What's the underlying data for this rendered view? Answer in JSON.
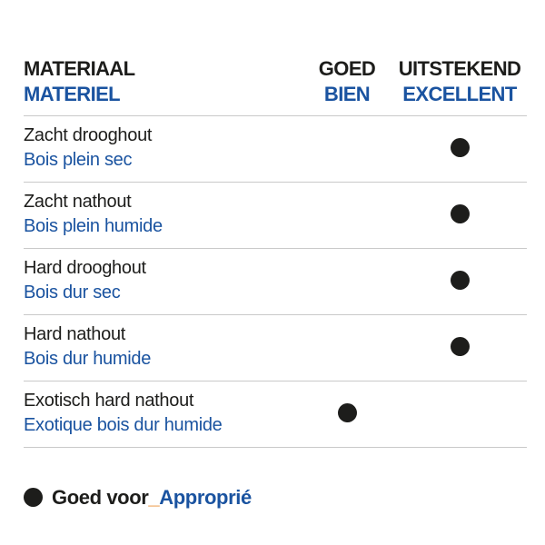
{
  "table": {
    "header": {
      "material_nl": "MATERIAAL",
      "material_fr": "MATERIEL",
      "good_nl": "GOED",
      "good_fr": "BIEN",
      "excellent_nl": "UITSTEKEND",
      "excellent_fr": "EXCELLENT"
    },
    "rows": [
      {
        "nl": "Zacht drooghout",
        "fr": "Bois plein sec",
        "rating": "excellent"
      },
      {
        "nl": "Zacht nathout",
        "fr": "Bois plein humide",
        "rating": "excellent"
      },
      {
        "nl": "Hard drooghout",
        "fr": "Bois dur sec",
        "rating": "excellent"
      },
      {
        "nl": "Hard nathout",
        "fr": "Bois dur humide",
        "rating": "excellent"
      },
      {
        "nl": "Exotisch hard nathout",
        "fr": "Exotique bois dur humide",
        "rating": "good"
      }
    ]
  },
  "legend": {
    "dot_icon": "filled-circle-icon",
    "label_nl": "Goed voor",
    "separator": "_",
    "label_fr": "Approprié"
  },
  "colors": {
    "text_black": "#1d1d1b",
    "text_blue": "#1a53a0",
    "divider_gray": "#c9c9c9",
    "underscore_orange": "#e98b2d",
    "dot_black": "#1d1d1b"
  }
}
